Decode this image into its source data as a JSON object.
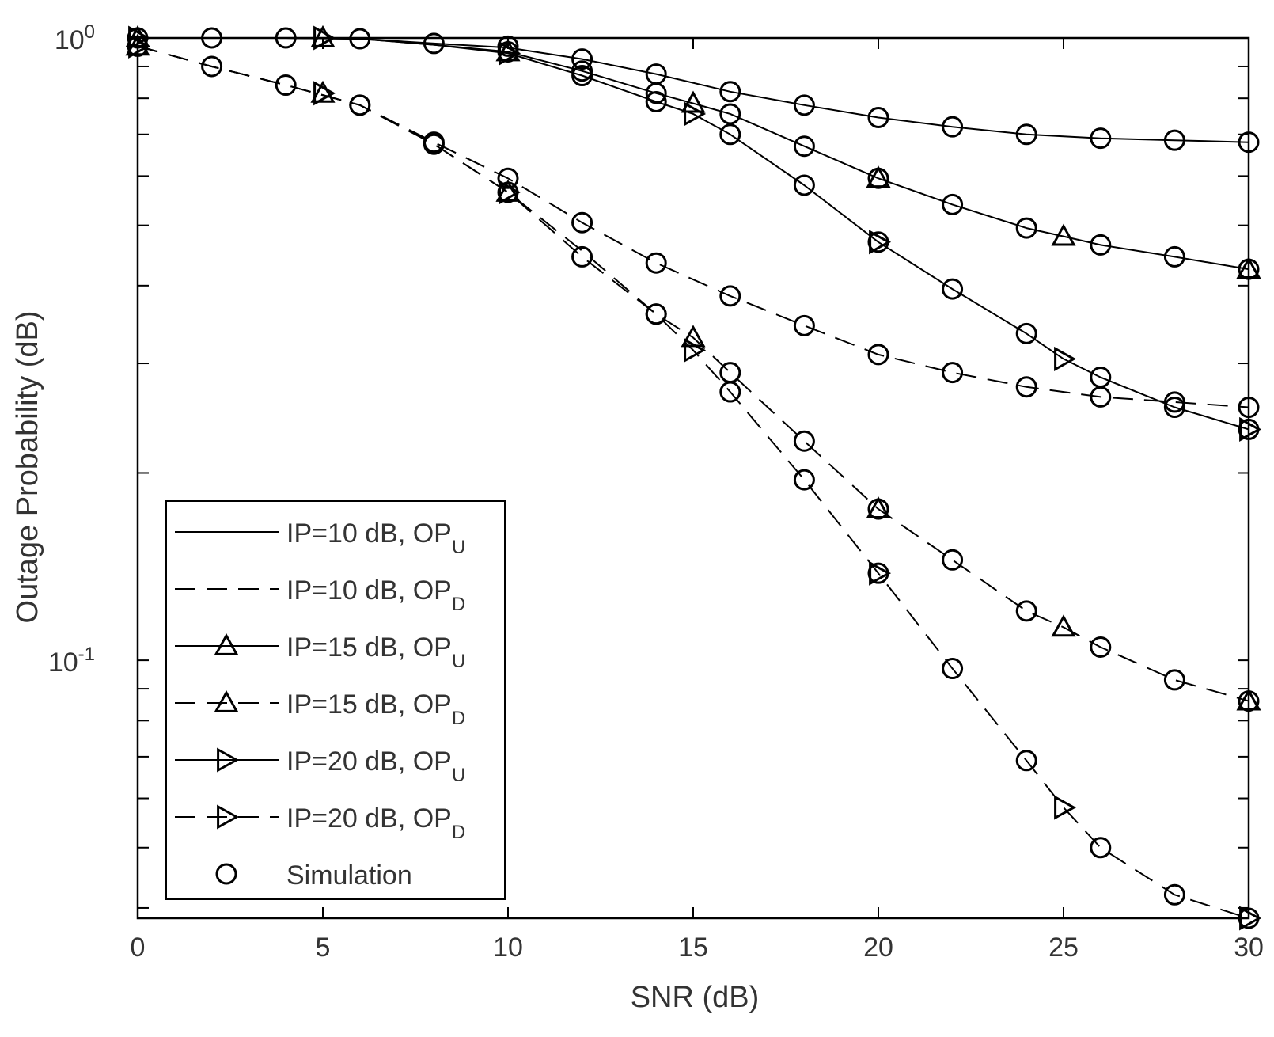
{
  "chart_data": {
    "type": "line",
    "title": "",
    "xlabel": "SNR (dB)",
    "ylabel": "Outage Probability (dB)",
    "xlim": [
      0,
      30
    ],
    "ylim": [
      0.0385,
      1.0
    ],
    "yscale": "log",
    "grid": false,
    "legend_position": "bottom-left",
    "x_ticks": [
      0,
      5,
      10,
      15,
      20,
      25,
      30
    ],
    "x_tick_labels": [
      "0",
      "5",
      "10",
      "15",
      "20",
      "25",
      "30"
    ],
    "y_tick_labels": [
      {
        "value": 1.0,
        "base": "10",
        "exp": "0"
      },
      {
        "value": 0.1,
        "base": "10",
        "exp": "-1"
      }
    ],
    "series": [
      {
        "name": "IP=10 dB, OP",
        "subscript": "U",
        "dash": "solid",
        "marker": "none",
        "x": [
          0,
          2,
          4,
          6,
          8,
          10,
          12,
          14,
          16,
          18,
          20,
          22,
          24,
          26,
          28,
          30
        ],
        "y": [
          1.0,
          1.0,
          1.0,
          0.997,
          0.98,
          0.965,
          0.925,
          0.875,
          0.82,
          0.78,
          0.745,
          0.72,
          0.7,
          0.69,
          0.685,
          0.68
        ]
      },
      {
        "name": "IP=10 dB, OP",
        "subscript": "D",
        "dash": "dashed",
        "marker": "none",
        "x": [
          0,
          2,
          4,
          6,
          8,
          10,
          12,
          14,
          16,
          18,
          20,
          22,
          24,
          26,
          28,
          30
        ],
        "y": [
          0.97,
          0.9,
          0.84,
          0.78,
          0.68,
          0.595,
          0.505,
          0.435,
          0.385,
          0.345,
          0.31,
          0.29,
          0.275,
          0.265,
          0.26,
          0.255
        ]
      },
      {
        "name": "IP=15 dB, OP",
        "subscript": "U",
        "dash": "solid",
        "marker": "triangle-up",
        "x": [
          0,
          2,
          4,
          6,
          8,
          10,
          12,
          14,
          15,
          16,
          18,
          20,
          22,
          24,
          25,
          26,
          28,
          30
        ],
        "y": [
          1.0,
          1.0,
          1.0,
          0.997,
          0.975,
          0.95,
          0.885,
          0.815,
          0.785,
          0.755,
          0.67,
          0.595,
          0.54,
          0.495,
          0.48,
          0.465,
          0.445,
          0.425
        ],
        "marker_x": [
          0,
          5,
          10,
          15,
          20,
          25,
          30
        ],
        "marker_y": [
          1.0,
          1.0,
          0.95,
          0.785,
          0.595,
          0.48,
          0.425
        ]
      },
      {
        "name": "IP=15 dB, OP",
        "subscript": "D",
        "dash": "dashed",
        "marker": "triangle-up",
        "x": [
          0,
          2,
          4,
          6,
          8,
          10,
          12,
          14,
          15,
          16,
          18,
          20,
          22,
          24,
          25,
          26,
          28,
          30
        ],
        "y": [
          0.97,
          0.9,
          0.84,
          0.78,
          0.675,
          0.565,
          0.455,
          0.36,
          0.33,
          0.29,
          0.225,
          0.175,
          0.145,
          0.12,
          0.113,
          0.105,
          0.093,
          0.086
        ],
        "marker_x": [
          0,
          5,
          10,
          15,
          20,
          25,
          30
        ],
        "marker_y": [
          0.97,
          0.815,
          0.565,
          0.33,
          0.175,
          0.113,
          0.086
        ]
      },
      {
        "name": "IP=20 dB, OP",
        "subscript": "U",
        "dash": "solid",
        "marker": "triangle-right",
        "x": [
          0,
          2,
          4,
          6,
          8,
          10,
          12,
          14,
          15,
          16,
          18,
          20,
          22,
          24,
          25,
          26,
          28,
          30
        ],
        "y": [
          1.0,
          1.0,
          1.0,
          0.997,
          0.975,
          0.945,
          0.87,
          0.79,
          0.755,
          0.7,
          0.58,
          0.47,
          0.395,
          0.335,
          0.305,
          0.285,
          0.255,
          0.235
        ],
        "marker_x": [
          0,
          5,
          10,
          15,
          20,
          25,
          30
        ],
        "marker_y": [
          1.0,
          1.0,
          0.945,
          0.755,
          0.47,
          0.305,
          0.235
        ]
      },
      {
        "name": "IP=20 dB, OP",
        "subscript": "D",
        "dash": "dashed",
        "marker": "triangle-right",
        "x": [
          0,
          2,
          4,
          6,
          8,
          10,
          12,
          14,
          15,
          16,
          18,
          20,
          22,
          24,
          25,
          26,
          28,
          30
        ],
        "y": [
          0.97,
          0.9,
          0.84,
          0.78,
          0.675,
          0.565,
          0.445,
          0.36,
          0.315,
          0.27,
          0.195,
          0.138,
          0.097,
          0.069,
          0.058,
          0.05,
          0.042,
          0.0385
        ],
        "marker_x": [
          0,
          5,
          10,
          15,
          20,
          25,
          30
        ],
        "marker_y": [
          0.97,
          0.815,
          0.565,
          0.315,
          0.138,
          0.058,
          0.0385
        ]
      }
    ],
    "simulation": {
      "name": "Simulation",
      "marker": "circle",
      "points": [
        [
          0,
          1.0
        ],
        [
          2,
          1.0
        ],
        [
          4,
          1.0
        ],
        [
          6,
          0.997
        ],
        [
          8,
          0.98
        ],
        [
          10,
          0.97
        ],
        [
          12,
          0.925
        ],
        [
          14,
          0.875
        ],
        [
          16,
          0.82
        ],
        [
          18,
          0.78
        ],
        [
          20,
          0.745
        ],
        [
          22,
          0.72
        ],
        [
          24,
          0.7
        ],
        [
          26,
          0.69
        ],
        [
          28,
          0.685
        ],
        [
          30,
          0.68
        ],
        [
          0,
          0.97
        ],
        [
          2,
          0.9
        ],
        [
          4,
          0.84
        ],
        [
          6,
          0.78
        ],
        [
          8,
          0.68
        ],
        [
          10,
          0.595
        ],
        [
          12,
          0.505
        ],
        [
          14,
          0.435
        ],
        [
          16,
          0.385
        ],
        [
          18,
          0.345
        ],
        [
          20,
          0.31
        ],
        [
          22,
          0.29
        ],
        [
          24,
          0.275
        ],
        [
          26,
          0.265
        ],
        [
          28,
          0.26
        ],
        [
          30,
          0.255
        ],
        [
          10,
          0.95
        ],
        [
          12,
          0.885
        ],
        [
          14,
          0.815
        ],
        [
          16,
          0.755
        ],
        [
          18,
          0.67
        ],
        [
          20,
          0.595
        ],
        [
          22,
          0.54
        ],
        [
          24,
          0.495
        ],
        [
          26,
          0.465
        ],
        [
          28,
          0.445
        ],
        [
          30,
          0.425
        ],
        [
          8,
          0.675
        ],
        [
          10,
          0.565
        ],
        [
          14,
          0.36
        ],
        [
          16,
          0.29
        ],
        [
          18,
          0.225
        ],
        [
          20,
          0.175
        ],
        [
          22,
          0.145
        ],
        [
          24,
          0.12
        ],
        [
          26,
          0.105
        ],
        [
          28,
          0.093
        ],
        [
          30,
          0.086
        ],
        [
          12,
          0.87
        ],
        [
          14,
          0.79
        ],
        [
          16,
          0.7
        ],
        [
          18,
          0.58
        ],
        [
          20,
          0.47
        ],
        [
          22,
          0.395
        ],
        [
          24,
          0.335
        ],
        [
          26,
          0.285
        ],
        [
          28,
          0.255
        ],
        [
          30,
          0.235
        ],
        [
          6,
          0.78
        ],
        [
          12,
          0.445
        ],
        [
          14,
          0.36
        ],
        [
          16,
          0.27
        ],
        [
          18,
          0.195
        ],
        [
          20,
          0.138
        ],
        [
          22,
          0.097
        ],
        [
          24,
          0.069
        ],
        [
          26,
          0.05
        ],
        [
          28,
          0.042
        ],
        [
          30,
          0.0385
        ]
      ]
    }
  }
}
